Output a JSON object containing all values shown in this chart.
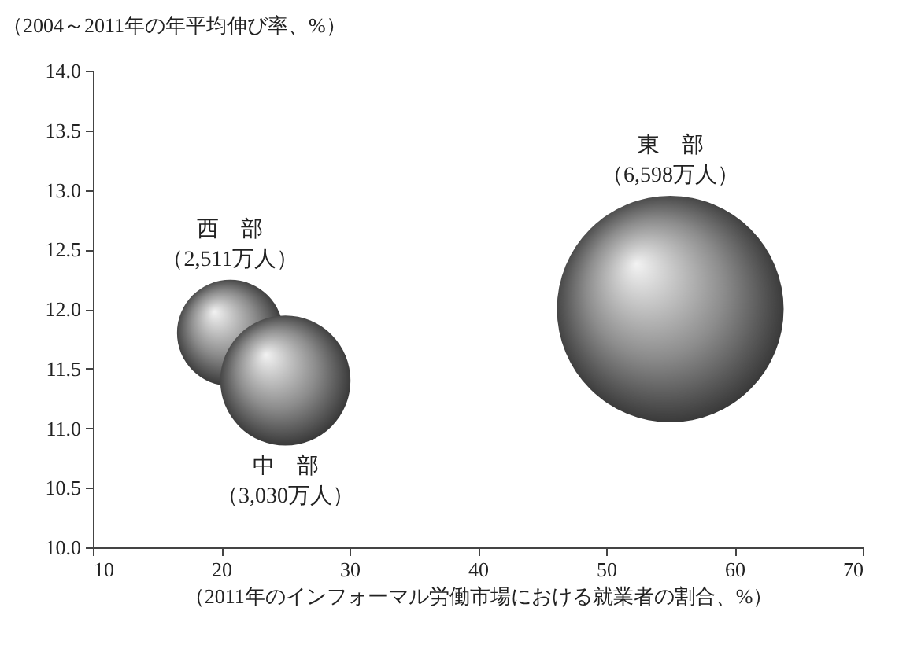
{
  "chart_data": {
    "type": "bubble",
    "ylabel": "（2004～2011年の年平均伸び率、%）",
    "xlabel": "（2011年のインフォーマル労働市場における就業者の割合、%）",
    "x": [
      20.7,
      25.0,
      55.0
    ],
    "series": [
      {
        "color": "#8c8c8c",
        "values": [
          11.8,
          11.4,
          12.0
        ],
        "sizes": [
          0.22,
          0.33,
          1
        ]
      }
    ],
    "xlim": [
      10,
      70
    ],
    "xticks": [
      10,
      20,
      30,
      40,
      50,
      60,
      70
    ],
    "ylim": [
      10,
      14
    ],
    "yticks": [
      {
        "value": 10,
        "label": "10.0"
      },
      {
        "value": 10.5,
        "label": "10.5"
      },
      {
        "value": 11,
        "label": "11.0"
      },
      {
        "value": 11.5,
        "label": "11.5"
      },
      {
        "value": 12,
        "label": "12.0"
      },
      {
        "value": 12.5,
        "label": "12.5"
      },
      {
        "value": 13,
        "label": "13.0"
      },
      {
        "value": 13.5,
        "label": "13.5"
      },
      {
        "value": 14,
        "label": "14.0"
      }
    ],
    "annotations": [
      "西　部",
      "（2,511万人）",
      "中　部",
      "（3,030万人）",
      "東　部",
      "（6,598万人）"
    ],
    "grid": false,
    "legend": false
  }
}
